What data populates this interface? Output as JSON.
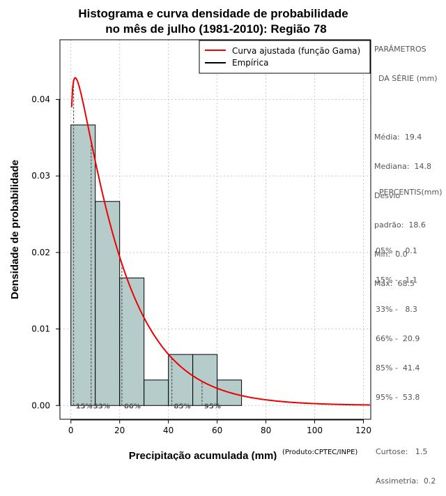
{
  "chart_data": {
    "type": "bar",
    "title_line1": "Histograma e curva densidade de probabilidade",
    "title_line2": "no mês de julho (1981-2010): Região 78",
    "xlabel": "Precipitação acumulada (mm)",
    "ylabel": "Densidade de probabilidade",
    "source_note": "(Produto:CPTEC/INPE)",
    "xlim": [
      -4.5,
      123
    ],
    "ylim": [
      -0.0018,
      0.0478
    ],
    "x_ticks": [
      0,
      20,
      40,
      60,
      80,
      100,
      120
    ],
    "x_tick_labels": [
      "0",
      "20",
      "40",
      "60",
      "80",
      "100",
      "120"
    ],
    "y_ticks": [
      0.0,
      0.01,
      0.02,
      0.03,
      0.04
    ],
    "y_tick_labels": [
      "0.00",
      "0.01",
      "0.02",
      "0.03",
      "0.04"
    ],
    "grid": true,
    "bar_color": "#b5cccb",
    "curve_color": "#ee0000",
    "histogram": {
      "bin_edges": [
        0,
        10,
        20,
        30,
        40,
        50,
        60,
        70
      ],
      "densities": [
        0.03667,
        0.02667,
        0.01667,
        0.00333,
        0.00667,
        0.00667,
        0.00333
      ]
    },
    "gamma_fit": {
      "shape": 1.1,
      "mean": 19.4
    },
    "percentile_markers": [
      {
        "x": 1.1,
        "label": "15%"
      },
      {
        "x": 8.3,
        "label": "33%"
      },
      {
        "x": 20.9,
        "label": "66%"
      },
      {
        "x": 41.4,
        "label": "85%"
      },
      {
        "x": 53.8,
        "label": "95%"
      }
    ],
    "legend": {
      "placement": "top-right",
      "entries": [
        {
          "label": "Curva ajustada (função Gama)",
          "color": "#ee0000"
        },
        {
          "label": "Empírica",
          "color": "#000000"
        }
      ]
    }
  },
  "side_panel": {
    "params_title_1": "PARÂMETROS",
    "params_title_2": "DA SÉRIE (mm)",
    "media": "Média:  19.4",
    "mediana": "Mediana:  14.8",
    "desvio_1": "Desvio",
    "desvio_2": "padrão:  18.6",
    "min": "Mín:  0.0",
    "max": "Máx:  68.5",
    "percentis_title": "PERCENTIS(mm)",
    "p05": "05% -   0.1",
    "p15": "15% -   1.1",
    "p33": "33% -   8.3",
    "p66": "66% -  20.9",
    "p85": "85% -  41.4",
    "p95": "95% -  53.8",
    "curtose": "Curtose:   1.5",
    "assimetria": "Assimetria:  0.2"
  }
}
